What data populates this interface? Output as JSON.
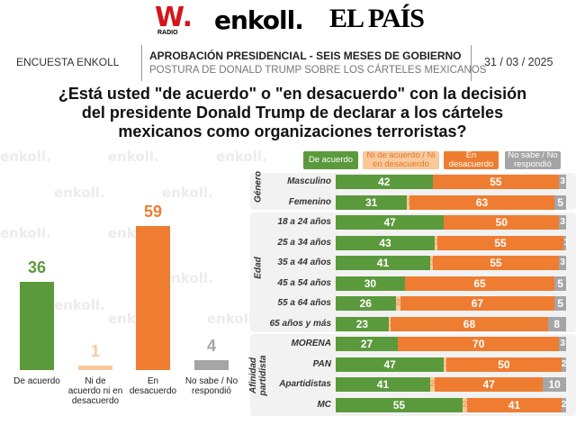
{
  "logos": {
    "wradio": "W.",
    "wradio_sub": "RADIO",
    "enkoll": "enkoll.",
    "elpais": "EL PAÍS"
  },
  "header": {
    "left": "ENCUESTA ENKOLL",
    "title": "APROBACIÓN PRESIDENCIAL - SEIS MESES DE GOBIERNO",
    "subtitle": "POSTURA DE DONALD TRUMP SOBRE LOS CÁRTELES MEXICANOS",
    "date": "31 / 03 / 2025"
  },
  "question": "¿Está usted \"de acuerdo\" o \"en desacuerdo\" con la decisión del presidente Donald Trump de declarar a los cárteles mexicanos como organizaciones terroristas?",
  "watermark": "enkoll.",
  "colors": {
    "agree": "#5b9a3c",
    "neutral": "#f9c89b",
    "disagree": "#ee7d31",
    "unknown": "#a5a5a5"
  },
  "chart_data": [
    {
      "type": "bar",
      "categories": [
        "De acuerdo",
        "Ni de acuerdo ni en desacuerdo",
        "En desacuerdo",
        "No sabe / No respondió"
      ],
      "values": [
        36,
        1,
        59,
        4
      ],
      "ylim": [
        0,
        100
      ]
    },
    {
      "type": "bar",
      "stacked": true,
      "orientation": "horizontal",
      "legend": [
        "De acuerdo",
        "Ni de acuerdo / Ni en desacuerdo",
        "En desacuerdo",
        "No sabe / No respondió"
      ],
      "legend_placement": "top",
      "groups": [
        {
          "name": "Género",
          "rows": [
            {
              "label": "Masculino",
              "values": [
                42,
                0,
                55,
                3
              ]
            },
            {
              "label": "Femenino",
              "values": [
                31,
                1,
                63,
                5
              ]
            }
          ]
        },
        {
          "name": "Edad",
          "rows": [
            {
              "label": "18 a 24 años",
              "values": [
                47,
                0,
                50,
                3
              ]
            },
            {
              "label": "25 a 34 años",
              "values": [
                43,
                1,
                55,
                1
              ]
            },
            {
              "label": "35 a 44 años",
              "values": [
                41,
                1,
                55,
                3
              ]
            },
            {
              "label": "45 a 54 años",
              "values": [
                30,
                0,
                65,
                5
              ]
            },
            {
              "label": "55 a 64 años",
              "values": [
                26,
                2,
                67,
                5
              ]
            },
            {
              "label": "65 años y más",
              "values": [
                23,
                1,
                68,
                8
              ]
            }
          ]
        },
        {
          "name": "Afinidad partidista",
          "rows": [
            {
              "label": "MORENA",
              "values": [
                27,
                0,
                70,
                3
              ]
            },
            {
              "label": "PAN",
              "values": [
                47,
                1,
                50,
                2
              ]
            },
            {
              "label": "Apartidistas",
              "values": [
                41,
                2,
                47,
                10
              ]
            },
            {
              "label": "MC",
              "values": [
                55,
                2,
                41,
                2
              ]
            }
          ]
        }
      ]
    }
  ]
}
